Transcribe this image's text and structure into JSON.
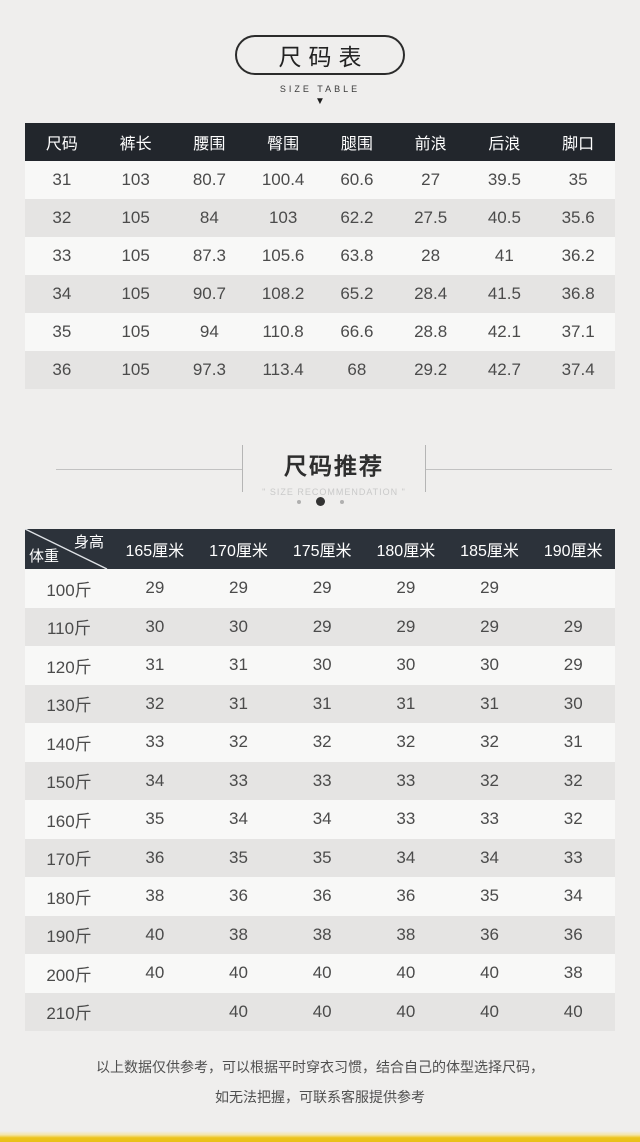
{
  "colors": {
    "page_background": "#efeeed",
    "table1_header_bg": "#22262c",
    "table2_header_bg": "#2c323a",
    "row_light": "#f8f8f7",
    "row_dark": "#e5e4e3",
    "accent_yellow": "#ecc41d"
  },
  "size_table_section": {
    "title": "尺码表",
    "subtitle": "SIZE TABLE",
    "arrow_glyph": "▼",
    "table": {
      "columns": [
        "尺码",
        "裤长",
        "腰围",
        "臀围",
        "腿围",
        "前浪",
        "后浪",
        "脚口"
      ],
      "rows": [
        [
          "31",
          "103",
          "80.7",
          "100.4",
          "60.6",
          "27",
          "39.5",
          "35"
        ],
        [
          "32",
          "105",
          "84",
          "103",
          "62.2",
          "27.5",
          "40.5",
          "35.6"
        ],
        [
          "33",
          "105",
          "87.3",
          "105.6",
          "63.8",
          "28",
          "41",
          "36.2"
        ],
        [
          "34",
          "105",
          "90.7",
          "108.2",
          "65.2",
          "28.4",
          "41.5",
          "36.8"
        ],
        [
          "35",
          "105",
          "94",
          "110.8",
          "66.6",
          "28.8",
          "42.1",
          "37.1"
        ],
        [
          "36",
          "105",
          "97.3",
          "113.4",
          "68",
          "29.2",
          "42.7",
          "37.4"
        ]
      ]
    }
  },
  "recommendation_section": {
    "title": "尺码推荐",
    "subtitle": "\" SIZE RECOMMENDATION \"",
    "table": {
      "corner_top_right": "身高",
      "corner_bottom_left": "体重",
      "columns": [
        "165厘米",
        "170厘米",
        "175厘米",
        "180厘米",
        "185厘米",
        "190厘米"
      ],
      "rows": [
        {
          "weight": "100斤",
          "values": [
            "29",
            "29",
            "29",
            "29",
            "29",
            ""
          ]
        },
        {
          "weight": "110斤",
          "values": [
            "30",
            "30",
            "29",
            "29",
            "29",
            "29"
          ]
        },
        {
          "weight": "120斤",
          "values": [
            "31",
            "31",
            "30",
            "30",
            "30",
            "29"
          ]
        },
        {
          "weight": "130斤",
          "values": [
            "32",
            "31",
            "31",
            "31",
            "31",
            "30"
          ]
        },
        {
          "weight": "140斤",
          "values": [
            "33",
            "32",
            "32",
            "32",
            "32",
            "31"
          ]
        },
        {
          "weight": "150斤",
          "values": [
            "34",
            "33",
            "33",
            "33",
            "32",
            "32"
          ]
        },
        {
          "weight": "160斤",
          "values": [
            "35",
            "34",
            "34",
            "33",
            "33",
            "32"
          ]
        },
        {
          "weight": "170斤",
          "values": [
            "36",
            "35",
            "35",
            "34",
            "34",
            "33"
          ]
        },
        {
          "weight": "180斤",
          "values": [
            "38",
            "36",
            "36",
            "36",
            "35",
            "34"
          ]
        },
        {
          "weight": "190斤",
          "values": [
            "40",
            "38",
            "38",
            "38",
            "36",
            "36"
          ]
        },
        {
          "weight": "200斤",
          "values": [
            "40",
            "40",
            "40",
            "40",
            "40",
            "38"
          ]
        },
        {
          "weight": "210斤",
          "values": [
            "",
            "40",
            "40",
            "40",
            "40",
            "40"
          ]
        }
      ]
    }
  },
  "footer": {
    "line1": "以上数据仅供参考，可以根据平时穿衣习惯，结合自己的体型选择尺码，",
    "line2": "如无法把握，可联系客服提供参考"
  }
}
